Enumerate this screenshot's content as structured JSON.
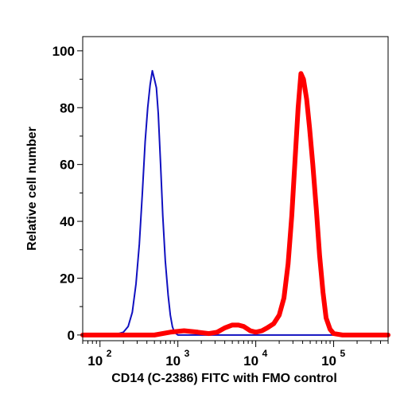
{
  "chart_data": {
    "type": "line",
    "xlabel": "CD14 (C-2386) FITC with FMO control",
    "ylabel": "Relative cell number",
    "xscale": "log",
    "xlim": [
      60,
      500000
    ],
    "ylim": [
      -2,
      105
    ],
    "yticks": [
      0,
      20,
      40,
      60,
      80,
      100
    ],
    "xticks": [
      {
        "value": 100,
        "base": "10",
        "exp": "2"
      },
      {
        "value": 1000,
        "base": "10",
        "exp": "3"
      },
      {
        "value": 10000,
        "base": "10",
        "exp": "4"
      },
      {
        "value": 100000,
        "base": "10",
        "exp": "5"
      }
    ],
    "grid": false,
    "legend": "none",
    "series": [
      {
        "color": "#1010c0",
        "points": [
          [
            60,
            0
          ],
          [
            150,
            0
          ],
          [
            200,
            1
          ],
          [
            230,
            3
          ],
          [
            260,
            8
          ],
          [
            290,
            18
          ],
          [
            320,
            32
          ],
          [
            350,
            50
          ],
          [
            380,
            68
          ],
          [
            410,
            80
          ],
          [
            440,
            88
          ],
          [
            470,
            93
          ],
          [
            500,
            90
          ],
          [
            530,
            87
          ],
          [
            560,
            78
          ],
          [
            600,
            60
          ],
          [
            640,
            42
          ],
          [
            690,
            26
          ],
          [
            750,
            14
          ],
          [
            800,
            7
          ],
          [
            850,
            3
          ],
          [
            900,
            1
          ],
          [
            1000,
            0
          ],
          [
            500000,
            0
          ]
        ]
      },
      {
        "color": "#ff0000",
        "points": [
          [
            60,
            0
          ],
          [
            500,
            0
          ],
          [
            800,
            1
          ],
          [
            1200,
            1.5
          ],
          [
            1800,
            1
          ],
          [
            2500,
            0.5
          ],
          [
            3200,
            1
          ],
          [
            4000,
            2.5
          ],
          [
            5000,
            3.5
          ],
          [
            6000,
            3.5
          ],
          [
            7000,
            3
          ],
          [
            8500,
            1.5
          ],
          [
            10000,
            1
          ],
          [
            12000,
            1.5
          ],
          [
            14000,
            2.5
          ],
          [
            17000,
            4
          ],
          [
            20000,
            7
          ],
          [
            23000,
            13
          ],
          [
            26000,
            25
          ],
          [
            29000,
            42
          ],
          [
            32000,
            62
          ],
          [
            35000,
            80
          ],
          [
            38000,
            92
          ],
          [
            41000,
            90
          ],
          [
            45000,
            83
          ],
          [
            49000,
            73
          ],
          [
            54000,
            60
          ],
          [
            60000,
            44
          ],
          [
            66000,
            28
          ],
          [
            73000,
            15
          ],
          [
            80000,
            6
          ],
          [
            90000,
            2
          ],
          [
            100000,
            0.5
          ],
          [
            130000,
            0
          ],
          [
            500000,
            0
          ]
        ]
      }
    ]
  }
}
